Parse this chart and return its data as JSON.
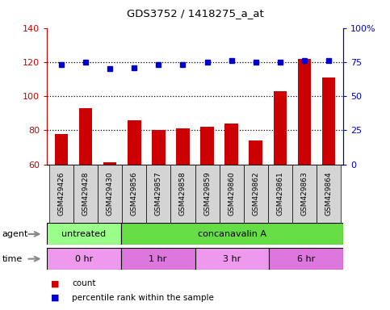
{
  "title": "GDS3752 / 1418275_a_at",
  "samples": [
    "GSM429426",
    "GSM429428",
    "GSM429430",
    "GSM429856",
    "GSM429857",
    "GSM429858",
    "GSM429859",
    "GSM429860",
    "GSM429862",
    "GSM429861",
    "GSM429863",
    "GSM429864"
  ],
  "counts": [
    78,
    93,
    61,
    86,
    80,
    81,
    82,
    84,
    74,
    103,
    122,
    111
  ],
  "percentiles": [
    73,
    75,
    70,
    71,
    73,
    73,
    75,
    76,
    75,
    75,
    76,
    76
  ],
  "ylim_left": [
    60,
    140
  ],
  "ylim_right": [
    0,
    100
  ],
  "yticks_left": [
    60,
    80,
    100,
    120,
    140
  ],
  "yticks_right": [
    0,
    25,
    50,
    75,
    100
  ],
  "bar_color": "#cc0000",
  "dot_color": "#0000cc",
  "agent_groups": [
    {
      "label": "untreated",
      "start": 0,
      "end": 3,
      "color": "#99ff88"
    },
    {
      "label": "concanavalin A",
      "start": 3,
      "end": 12,
      "color": "#66dd44"
    }
  ],
  "time_groups": [
    {
      "label": "0 hr",
      "start": 0,
      "end": 3,
      "color": "#ee99ee"
    },
    {
      "label": "1 hr",
      "start": 3,
      "end": 6,
      "color": "#dd77dd"
    },
    {
      "label": "3 hr",
      "start": 6,
      "end": 9,
      "color": "#ee99ee"
    },
    {
      "label": "6 hr",
      "start": 9,
      "end": 12,
      "color": "#dd77dd"
    }
  ],
  "legend_count_color": "#cc0000",
  "legend_pct_color": "#0000cc",
  "bg_color": "#ffffff",
  "plot_bg_color": "#ffffff",
  "tick_label_bg": "#d4d4d4"
}
